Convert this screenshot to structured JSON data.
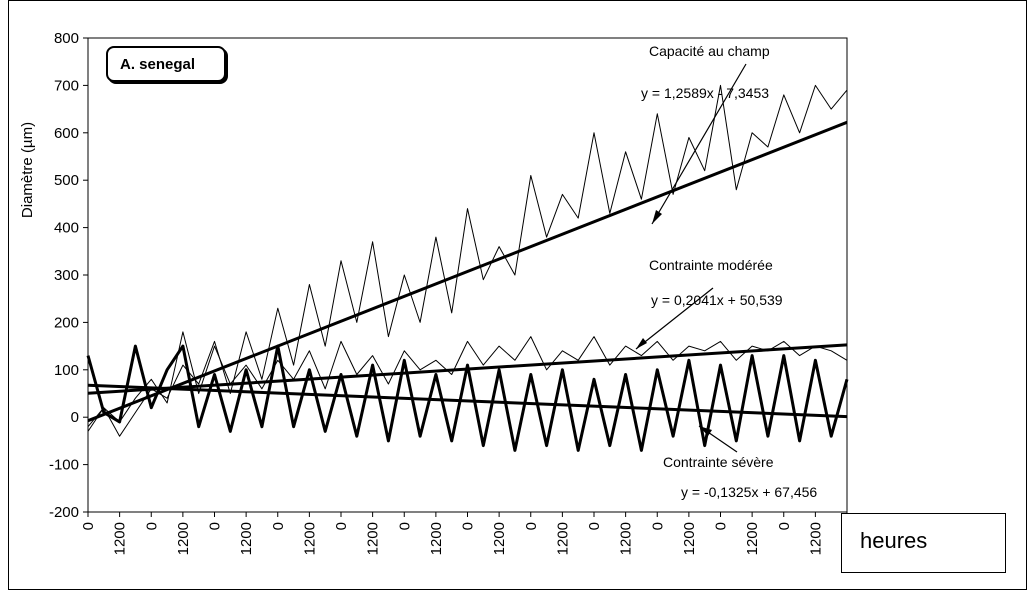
{
  "chart_data": {
    "type": "line",
    "title": "",
    "xlabel": "heures",
    "ylabel": "Diamètre (µm)",
    "ylim": [
      -200,
      800
    ],
    "yticks": [
      800,
      700,
      600,
      500,
      400,
      300,
      200,
      100,
      0,
      -100,
      -200
    ],
    "xtick_labels": [
      "0",
      "1200",
      "0",
      "1200",
      "0",
      "1200",
      "0",
      "1200",
      "0",
      "1200",
      "0",
      "1200",
      "0",
      "1200",
      "0",
      "1200",
      "0",
      "1200",
      "0",
      "1200",
      "0",
      "1200",
      "0",
      "1200",
      "0"
    ],
    "species_label": "A. senegal",
    "x_range": [
      0,
      24
    ],
    "series": [
      {
        "name": "Capacité au champ",
        "equation": "y = 1,2589x - 7,3453",
        "weight": "thin",
        "x": [
          0,
          0.5,
          1,
          1.5,
          2,
          2.5,
          3,
          3.5,
          4,
          4.5,
          5,
          5.5,
          6,
          6.5,
          7,
          7.5,
          8,
          8.5,
          9,
          9.5,
          10,
          10.5,
          11,
          11.5,
          12,
          12.5,
          13,
          13.5,
          14,
          14.5,
          15,
          15.5,
          16,
          16.5,
          17,
          17.5,
          18,
          18.5,
          19,
          19.5,
          20,
          20.5,
          21,
          21.5,
          22,
          22.5,
          23,
          23.5,
          24
        ],
        "values": [
          -20,
          20,
          -40,
          10,
          60,
          40,
          110,
          70,
          160,
          50,
          180,
          80,
          230,
          110,
          280,
          150,
          330,
          200,
          370,
          170,
          300,
          200,
          380,
          220,
          440,
          290,
          360,
          300,
          510,
          380,
          470,
          420,
          600,
          430,
          560,
          460,
          640,
          470,
          590,
          520,
          700,
          480,
          600,
          570,
          680,
          600,
          700,
          650,
          690
        ]
      },
      {
        "name": "Contrainte modérée",
        "equation": "y = 0,2041x + 50,539",
        "weight": "thin",
        "x": [
          0,
          0.5,
          1,
          1.5,
          2,
          2.5,
          3,
          3.5,
          4,
          4.5,
          5,
          5.5,
          6,
          6.5,
          7,
          7.5,
          8,
          8.5,
          9,
          9.5,
          10,
          10.5,
          11,
          11.5,
          12,
          12.5,
          13,
          13.5,
          14,
          14.5,
          15,
          15.5,
          16,
          16.5,
          17,
          17.5,
          18,
          18.5,
          19,
          19.5,
          20,
          20.5,
          21,
          21.5,
          22,
          22.5,
          23,
          23.5,
          24
        ],
        "values": [
          -30,
          20,
          -10,
          40,
          80,
          30,
          180,
          50,
          150,
          70,
          110,
          60,
          120,
          80,
          140,
          60,
          160,
          90,
          130,
          70,
          140,
          100,
          120,
          90,
          160,
          110,
          150,
          120,
          170,
          100,
          140,
          120,
          170,
          110,
          150,
          130,
          160,
          120,
          150,
          140,
          160,
          120,
          150,
          140,
          160,
          130,
          150,
          140,
          120
        ]
      },
      {
        "name": "Contrainte sévère",
        "equation": "y = -0,1325x + 67,456",
        "weight": "thick",
        "x": [
          0,
          0.5,
          1,
          1.5,
          2,
          2.5,
          3,
          3.5,
          4,
          4.5,
          5,
          5.5,
          6,
          6.5,
          7,
          7.5,
          8,
          8.5,
          9,
          9.5,
          10,
          10.5,
          11,
          11.5,
          12,
          12.5,
          13,
          13.5,
          14,
          14.5,
          15,
          15.5,
          16,
          16.5,
          17,
          17.5,
          18,
          18.5,
          19,
          19.5,
          20,
          20.5,
          21,
          21.5,
          22,
          22.5,
          23,
          23.5,
          24
        ],
        "values": [
          130,
          10,
          -10,
          150,
          20,
          100,
          150,
          -20,
          90,
          -30,
          100,
          -20,
          150,
          -20,
          100,
          -30,
          90,
          -40,
          110,
          -50,
          120,
          -40,
          90,
          -50,
          110,
          -60,
          100,
          -70,
          90,
          -60,
          100,
          -70,
          80,
          -60,
          90,
          -70,
          100,
          -40,
          120,
          -60,
          110,
          -50,
          130,
          -40,
          130,
          -50,
          120,
          -40,
          80
        ]
      }
    ],
    "annotations": {
      "capacite_label": "Capacité au champ",
      "capacite_eq": "y = 1,2589x - 7,3453",
      "moderee_label": "Contrainte modérée",
      "moderee_eq": "y = 0,2041x + 50,539",
      "severe_label": "Contrainte sévère",
      "severe_eq": "y = -0,1325x + 67,456"
    },
    "grid": false,
    "legend": "none"
  }
}
